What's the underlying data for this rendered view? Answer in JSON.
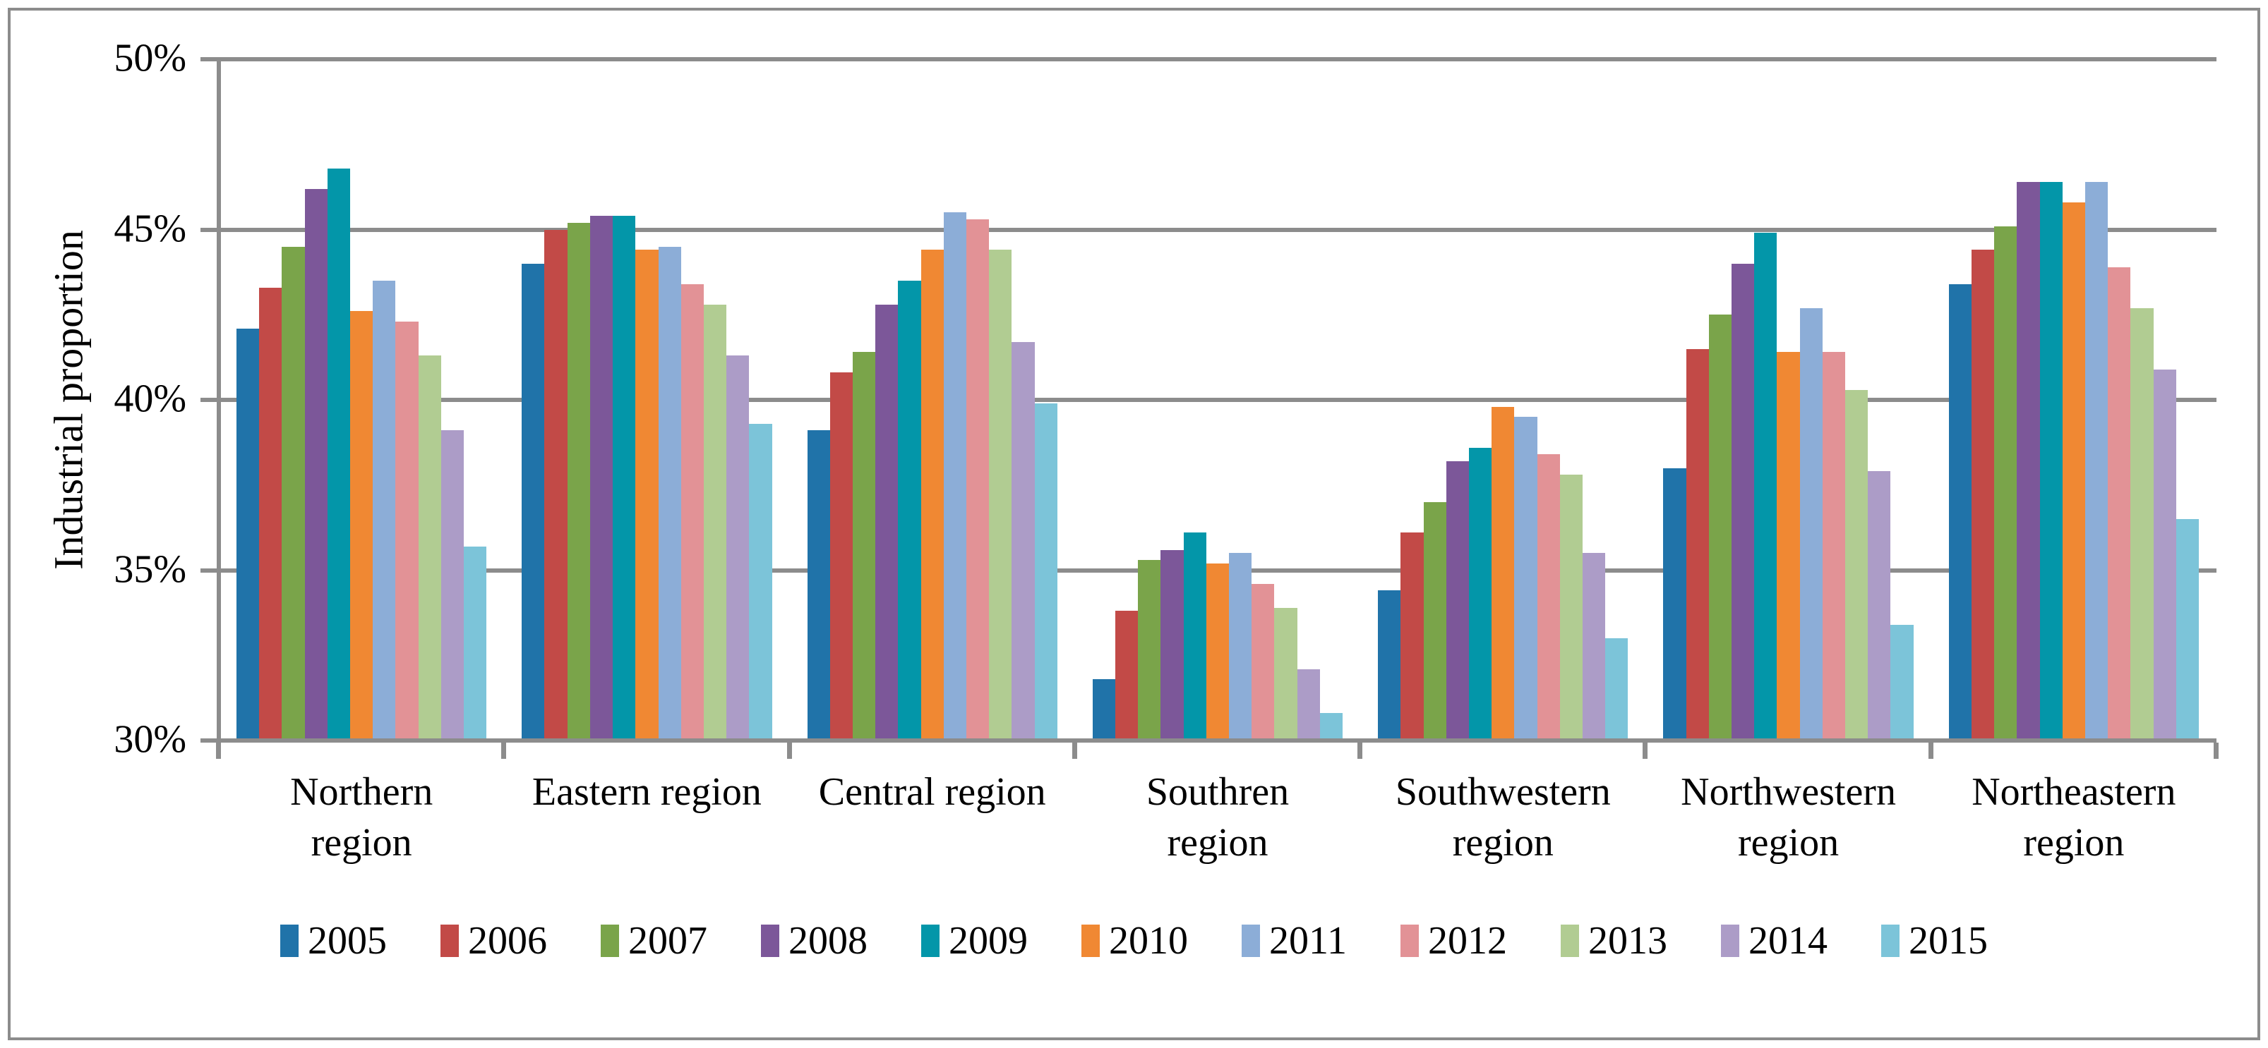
{
  "figure": {
    "title": "",
    "grid_color": "#8C8C8C",
    "border_color": "#8C8C8C",
    "text_color": "#000000",
    "background": "#FFFFFF"
  },
  "chart_data": {
    "type": "bar",
    "title": "",
    "xlabel": "",
    "ylabel": "Industrial proportion",
    "ylim": [
      30,
      50
    ],
    "grid": true,
    "legend_position": "bottom",
    "yticks": [
      30,
      35,
      40,
      45,
      50
    ],
    "ytick_labels": [
      "30%",
      "35%",
      "40%",
      "45%",
      "50%"
    ],
    "categories": [
      "Northern region",
      "Eastern region",
      "Central region",
      "Southren region",
      "Southwestern region",
      "Northwestern region",
      "Northeastern region"
    ],
    "xtick_labels": [
      "Northern\nregion",
      "Eastern region",
      "Central region",
      "Southren\nregion",
      "Southwestern\nregion",
      "Northwestern\nregion",
      "Northeastern\nregion"
    ],
    "series": [
      {
        "name": "2005",
        "color": "#2073A9",
        "values": [
          42.1,
          44.0,
          39.1,
          31.8,
          34.4,
          38.0,
          43.4
        ]
      },
      {
        "name": "2006",
        "color": "#C24A47",
        "values": [
          43.3,
          45.0,
          40.8,
          33.8,
          36.1,
          41.5,
          44.4
        ]
      },
      {
        "name": "2007",
        "color": "#7AA44A",
        "values": [
          44.5,
          45.2,
          41.4,
          35.3,
          37.0,
          42.5,
          45.1
        ]
      },
      {
        "name": "2008",
        "color": "#7C5799",
        "values": [
          46.2,
          45.4,
          42.8,
          35.6,
          38.2,
          44.0,
          46.4
        ]
      },
      {
        "name": "2009",
        "color": "#0396A9",
        "values": [
          46.8,
          45.4,
          43.5,
          36.1,
          38.6,
          44.9,
          46.4
        ]
      },
      {
        "name": "2010",
        "color": "#F08833",
        "values": [
          42.6,
          44.4,
          44.4,
          35.2,
          39.8,
          41.4,
          45.8
        ]
      },
      {
        "name": "2011",
        "color": "#8CADD7",
        "values": [
          43.5,
          44.5,
          45.5,
          35.5,
          39.5,
          42.7,
          46.4
        ]
      },
      {
        "name": "2012",
        "color": "#E29296",
        "values": [
          42.3,
          43.4,
          45.3,
          34.6,
          38.4,
          41.4,
          43.9
        ]
      },
      {
        "name": "2013",
        "color": "#B1CC92",
        "values": [
          41.3,
          42.8,
          44.4,
          33.9,
          37.8,
          40.3,
          42.7
        ]
      },
      {
        "name": "2014",
        "color": "#AC9CC7",
        "values": [
          39.1,
          41.3,
          41.7,
          32.1,
          35.5,
          37.9,
          40.9
        ]
      },
      {
        "name": "2015",
        "color": "#7CC4D9",
        "values": [
          35.7,
          39.3,
          39.9,
          30.8,
          33.0,
          33.4,
          36.5
        ]
      }
    ]
  }
}
